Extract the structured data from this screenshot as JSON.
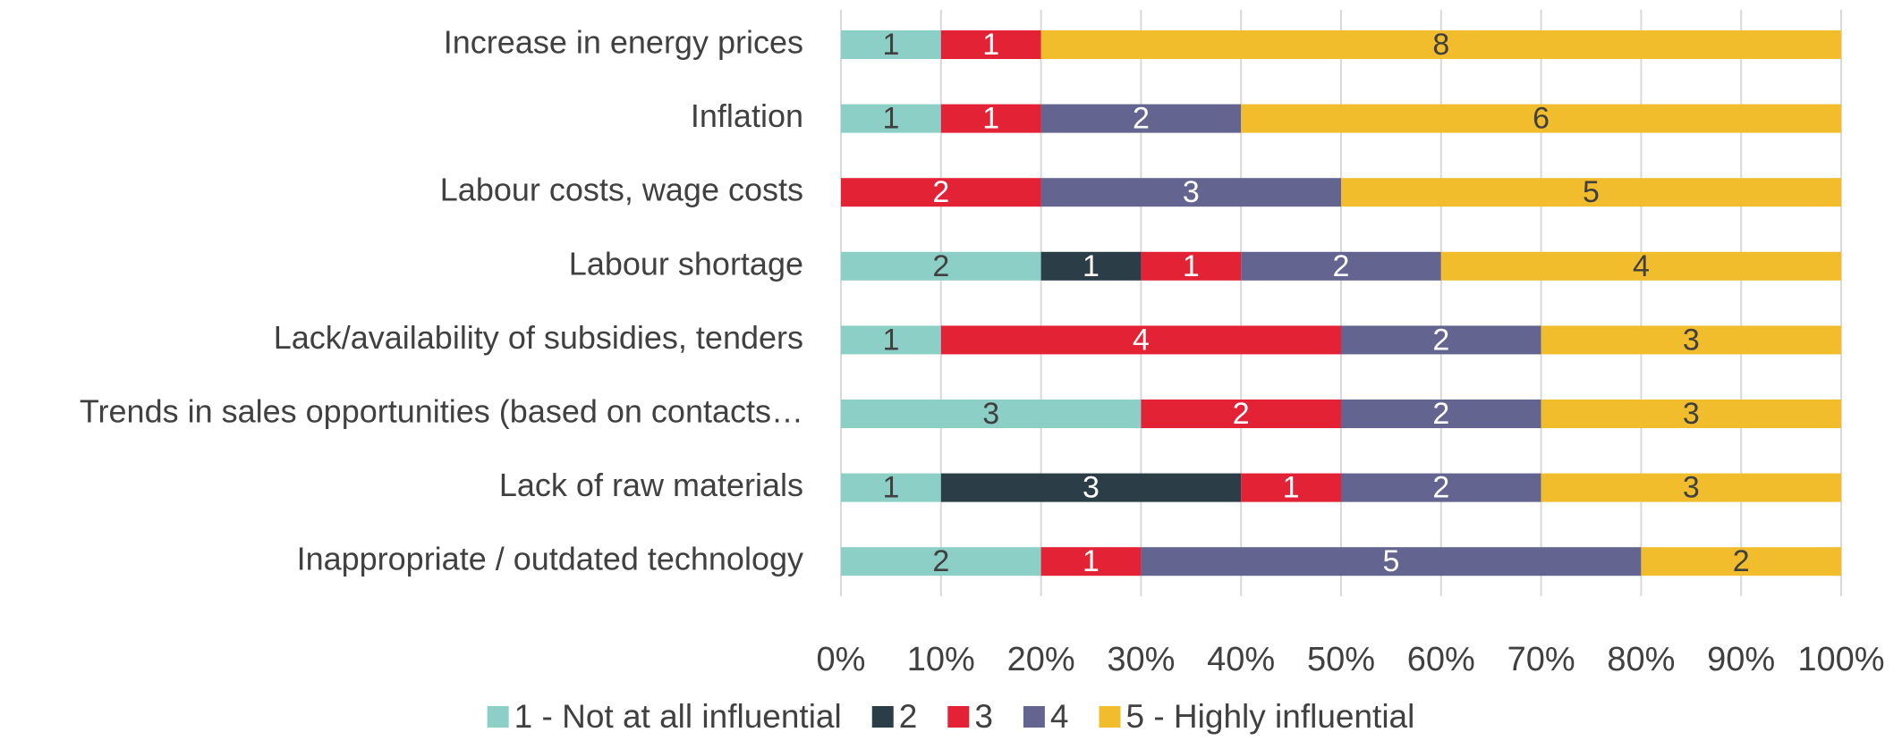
{
  "chart_data": {
    "type": "bar_100_stacked",
    "categories": [
      "Increase in energy prices",
      "Inflation",
      "Labour costs, wage costs",
      "Labour shortage",
      "Lack/availability of subsidies, tenders",
      "Trends in sales opportunities (based on contacts…",
      "Lack of raw materials",
      "Inappropriate / outdated technology"
    ],
    "series": [
      {
        "name": "1 - Not at all influential",
        "color": "#8ccfc7",
        "values": [
          1,
          1,
          null,
          2,
          1,
          3,
          1,
          2
        ]
      },
      {
        "name": "2",
        "color": "#2b3d47",
        "values": [
          null,
          null,
          null,
          1,
          null,
          null,
          3,
          null
        ]
      },
      {
        "name": "3",
        "color": "#e32236",
        "values": [
          1,
          1,
          2,
          1,
          4,
          2,
          1,
          1
        ]
      },
      {
        "name": "4",
        "color": "#646490",
        "values": [
          null,
          2,
          3,
          2,
          2,
          2,
          2,
          5
        ]
      },
      {
        "name": "5 - Highly influential",
        "color": "#f2bd2d",
        "values": [
          8,
          6,
          5,
          4,
          3,
          3,
          3,
          2
        ]
      }
    ],
    "xlim": [
      0,
      100
    ],
    "xticks": [
      {
        "value": 0,
        "label": "0%"
      },
      {
        "value": 10,
        "label": "10%"
      },
      {
        "value": 20,
        "label": "20%"
      },
      {
        "value": 30,
        "label": "30%"
      },
      {
        "value": 40,
        "label": "40%"
      },
      {
        "value": 50,
        "label": "50%"
      },
      {
        "value": 60,
        "label": "60%"
      },
      {
        "value": 70,
        "label": "70%"
      },
      {
        "value": 80,
        "label": "80%"
      },
      {
        "value": 90,
        "label": "90%"
      },
      {
        "value": 100,
        "label": "100%"
      }
    ],
    "grid": true,
    "legend": "bottom"
  }
}
